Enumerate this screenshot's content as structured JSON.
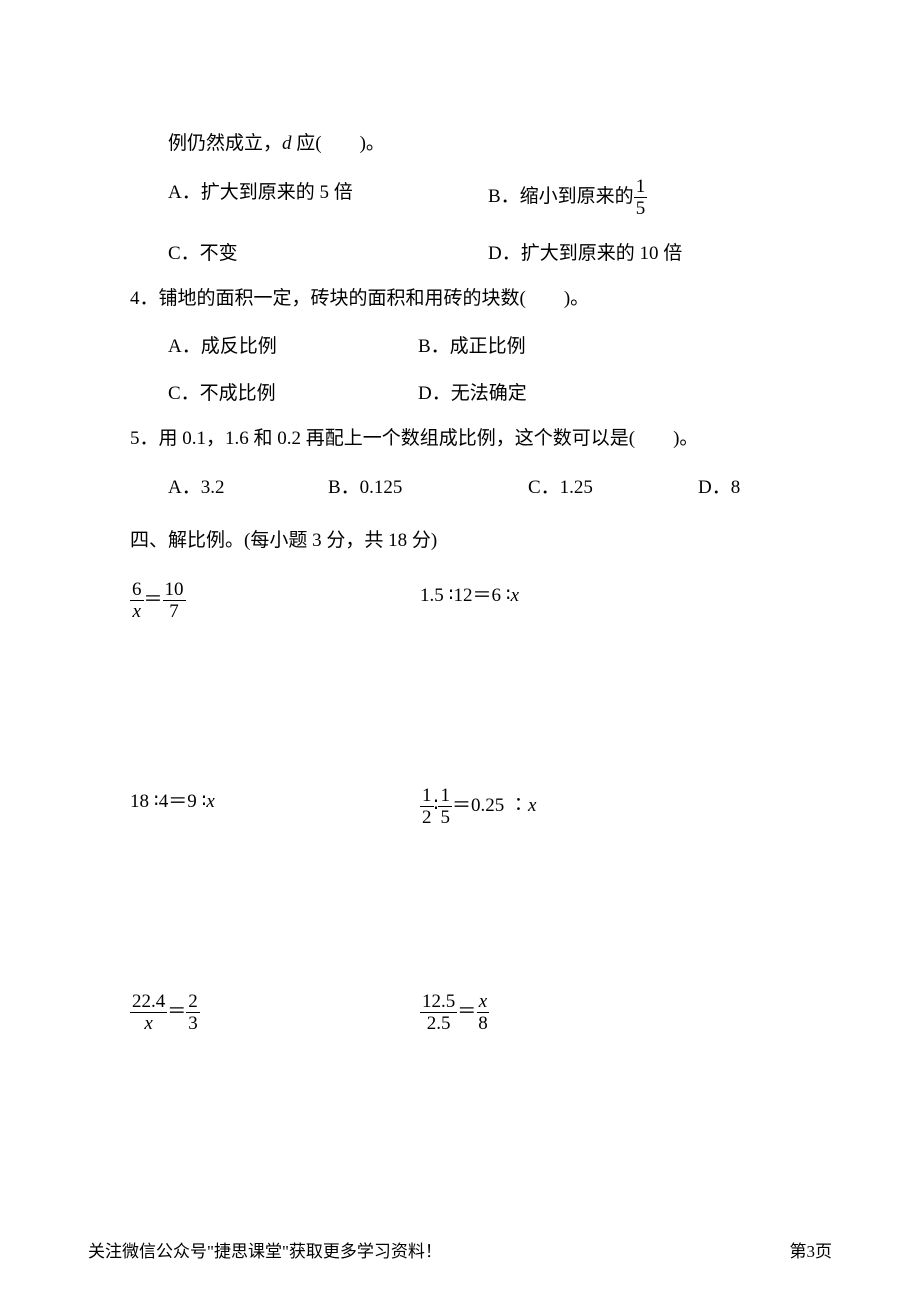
{
  "q3": {
    "stem_cont": "例仍然成立，<span class=\"italic\">d</span> 应(　　)。",
    "optA": "A．扩大到原来的 5 倍",
    "optB_prefix": "B．缩小到原来的",
    "optB_frac_num": "1",
    "optB_frac_den": "5",
    "optC": "C．不变",
    "optD": "D．扩大到原来的 10 倍"
  },
  "q4": {
    "stem": "4．铺地的面积一定，砖块的面积和用砖的块数(　　)。",
    "optA": "A．成反比例",
    "optB": "B．成正比例",
    "optC": "C．不成比例",
    "optD": "D．无法确定"
  },
  "q5": {
    "stem": "5．用 0.1，1.6 和 0.2 再配上一个数组成比例，这个数可以是(　　)。",
    "optA": "A．3.2",
    "optB": "B．0.125",
    "optC": "C．1.25",
    "optD": "D．8"
  },
  "section4_title": "四、解比例。(每小题 3 分，共 18 分)",
  "eq1_left_num": "6",
  "eq1_left_den_html": "<span class=\"italic\">x</span>",
  "eq1_mid": "＝",
  "eq1_right_num": "10",
  "eq1_right_den": "7",
  "eq2_html": "1.5 ∶12＝6 ∶<span class=\"italic\">x</span>",
  "eq3_html": "18 ∶4＝9 ∶<span class=\"italic\">x</span>",
  "eq4_left_num": "1",
  "eq4_left_den": "2",
  "eq4_colon": "∶",
  "eq4_right_num": "1",
  "eq4_right_den": "5",
  "eq4_tail_html": "＝0.25 ∶<span class=\"italic\">x</span>",
  "eq5_left_num": "22.4",
  "eq5_left_den_html": "<span class=\"italic\">x</span>",
  "eq5_mid": "＝",
  "eq5_right_num": "2",
  "eq5_right_den": "3",
  "eq6_left_num": "12.5",
  "eq6_left_den": "2.5",
  "eq6_mid": "＝",
  "eq6_right_num_html": "<span class=\"italic\">x</span>",
  "eq6_right_den": "8",
  "footer_left": "关注微信公众号\"捷思课堂\"获取更多学习资料！",
  "footer_right": "第3页"
}
